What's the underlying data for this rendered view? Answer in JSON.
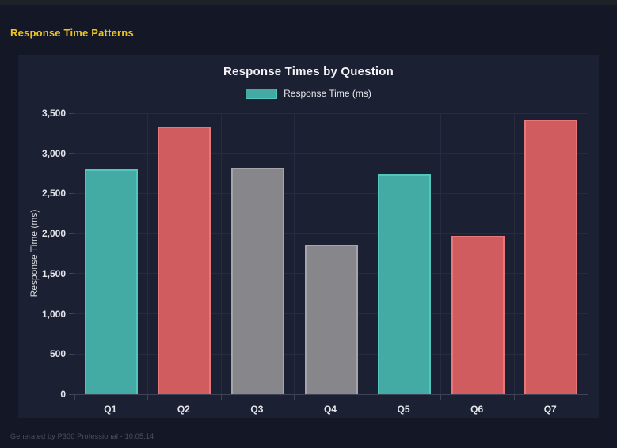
{
  "page": {
    "heading": "Response Time Patterns",
    "heading_color": "#EEC41E",
    "footer": "Generated by P300 Professional - 10:05:14",
    "background": "#141726",
    "panel_background": "#1C2033"
  },
  "chart_data": {
    "type": "bar",
    "title": "Response Times by Question",
    "legend": {
      "label": "Response Time (ms)",
      "position": "top",
      "swatch_fill": "#43ABA4",
      "swatch_border": "#52C5BD"
    },
    "categories": [
      "Q1",
      "Q2",
      "Q3",
      "Q4",
      "Q5",
      "Q6",
      "Q7"
    ],
    "series": [
      {
        "name": "Response Time (ms)",
        "values": [
          2800,
          3330,
          2820,
          1860,
          2740,
          1970,
          3420
        ]
      }
    ],
    "bar_colors": [
      {
        "fill": "#43ABA4",
        "border": "#52C5BD"
      },
      {
        "fill": "#D05C60",
        "border": "#E87779"
      },
      {
        "fill": "#87868B",
        "border": "#A5A4A9"
      },
      {
        "fill": "#87868B",
        "border": "#A5A4A9"
      },
      {
        "fill": "#43ABA4",
        "border": "#52C5BD"
      },
      {
        "fill": "#D05C60",
        "border": "#E87779"
      },
      {
        "fill": "#D05C60",
        "border": "#E87779"
      }
    ],
    "xlabel": "",
    "ylabel": "Response Time (ms)",
    "ylim": [
      0,
      3500
    ],
    "ytick_step": 500,
    "ytick_labels": [
      "0",
      "500",
      "1,000",
      "1,500",
      "2,000",
      "2,500",
      "3,000",
      "3,500"
    ],
    "grid": true,
    "grid_color": "#262B40",
    "axis_color": "#3E4358"
  }
}
